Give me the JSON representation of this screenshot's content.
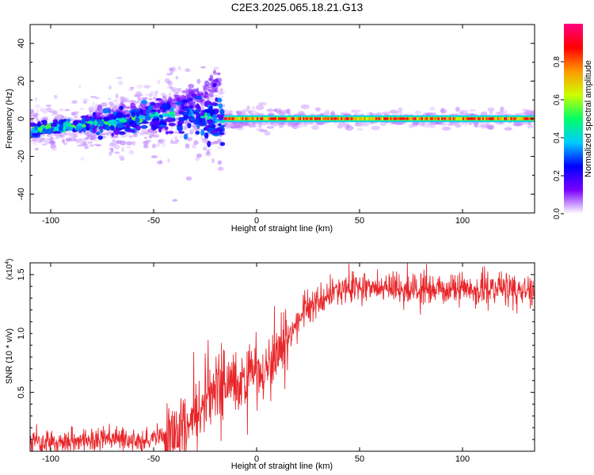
{
  "figure_title": "C2E3.2025.065.18.21.G13",
  "colors": {
    "snr_line": "#e8262a",
    "axis": "#000000",
    "colormap": [
      "#ffffff",
      "#7a00ff",
      "#0000ff",
      "#00ccff",
      "#00ff66",
      "#ccff00",
      "#ff9900",
      "#ff0000",
      "#ff0080"
    ]
  },
  "chart_data": [
    {
      "type": "heatmap",
      "title": "",
      "xlabel": "Height of straight line (km)",
      "ylabel": "Frequency (Hz)",
      "xlim": [
        -110,
        135
      ],
      "ylim": [
        -50,
        50
      ],
      "xticks": [
        -100,
        -50,
        0,
        50,
        100
      ],
      "yticks": [
        -40,
        -20,
        0,
        20,
        40
      ],
      "grid": false,
      "colorbar": {
        "label": "Normalized spectral amplitude",
        "range": [
          0,
          1
        ],
        "ticks": [
          "0.0",
          "0.2",
          "0.4",
          "0.6",
          "0.8"
        ],
        "tick_values": [
          0,
          0.2,
          0.4,
          0.6,
          0.8
        ]
      },
      "ridge": {
        "x": [
          -110,
          -100,
          -90,
          -80,
          -70,
          -60,
          -50,
          -40,
          -30,
          -20,
          -16,
          0,
          50,
          100,
          135
        ],
        "center_freq": [
          -6,
          -5,
          -4,
          -3,
          -2,
          0,
          1,
          2,
          2,
          0,
          -2,
          -1,
          0,
          0,
          0
        ],
        "peak_amplitude": [
          0.5,
          0.45,
          0.4,
          0.35,
          0.3,
          0.3,
          0.3,
          0.3,
          0.3,
          0.35,
          0.9,
          0.9,
          0.95,
          0.95,
          0.9
        ]
      },
      "secondary_branch": {
        "x": [
          -80,
          -60,
          -40,
          -25,
          -18
        ],
        "center_freq": [
          -1,
          3,
          8,
          14,
          20
        ]
      }
    },
    {
      "type": "line",
      "title": "",
      "xlabel": "Height of straight line (km)",
      "ylabel": "SNR (10 * v/v)",
      "y_multiplier_label": "(x10",
      "y_multiplier_exp": "4",
      "y_multiplier_close": ")",
      "xlim": [
        -110,
        135
      ],
      "ylim": [
        0,
        1.6
      ],
      "xticks": [
        -100,
        -50,
        0,
        50,
        100
      ],
      "yticks": [
        0.5,
        1.0,
        1.5
      ],
      "ytick_labels": [
        "0.5",
        "1.0",
        "1.5"
      ],
      "grid": false,
      "series": [
        {
          "x": [
            -110,
            -100,
            -90,
            -80,
            -70,
            -60,
            -50,
            -40,
            -30,
            -25,
            -20,
            -15,
            -10,
            -5,
            0,
            5,
            10,
            15,
            20,
            25,
            30,
            35,
            40,
            50,
            60,
            70,
            80,
            90,
            100,
            110,
            120,
            130,
            135
          ],
          "values": [
            0.07,
            0.08,
            0.09,
            0.1,
            0.1,
            0.09,
            0.11,
            0.15,
            0.25,
            0.38,
            0.52,
            0.55,
            0.5,
            0.6,
            0.72,
            0.75,
            0.8,
            0.95,
            1.12,
            1.22,
            1.28,
            1.33,
            1.37,
            1.38,
            1.38,
            1.39,
            1.38,
            1.37,
            1.38,
            1.37,
            1.37,
            1.36,
            1.35
          ]
        }
      ]
    }
  ]
}
